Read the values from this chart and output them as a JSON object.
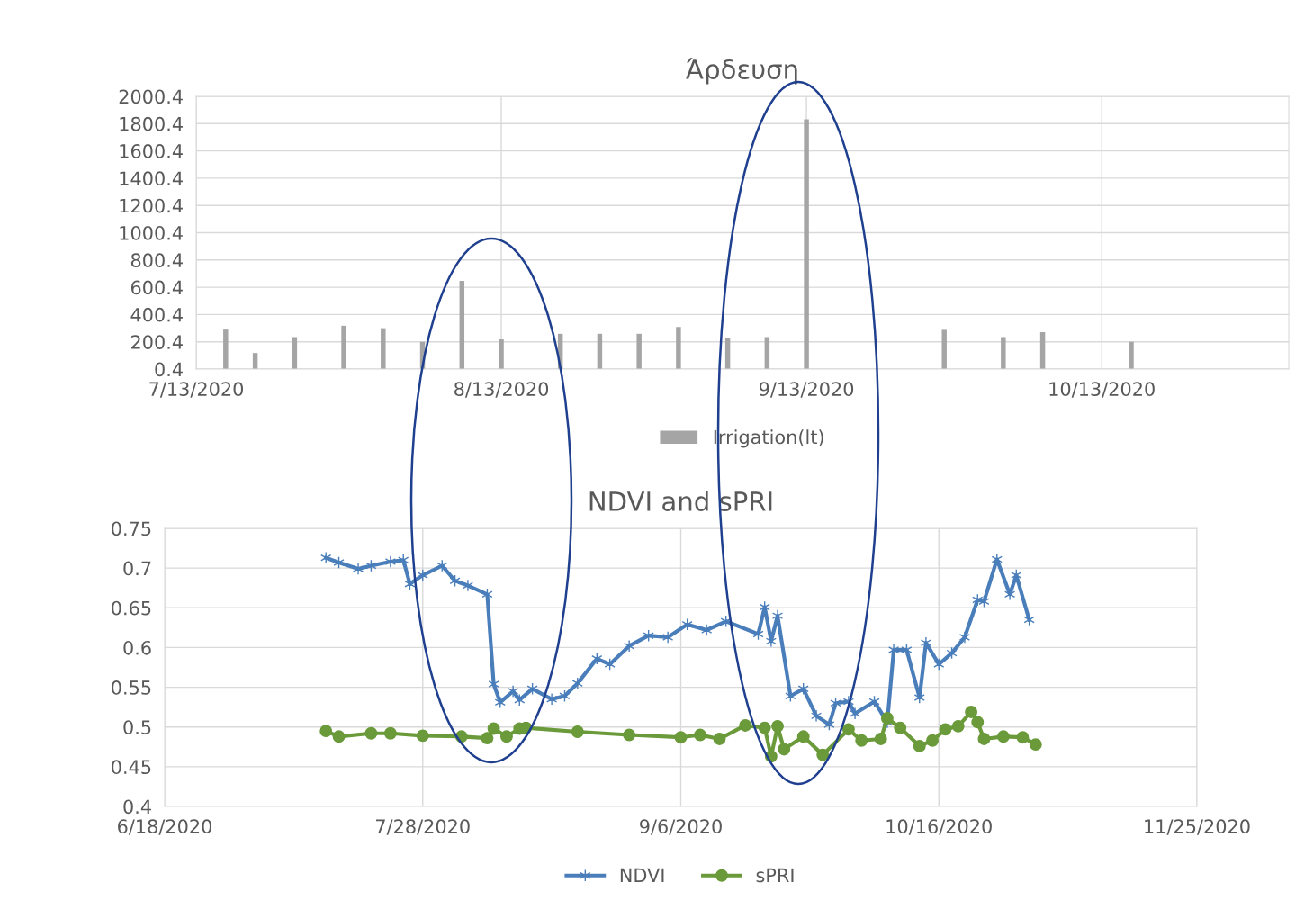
{
  "chart_data": [
    {
      "type": "bar",
      "title": "Άρδευση",
      "legend": "bottom",
      "grid": true,
      "x": [
        "2020-07-16",
        "2020-07-19",
        "2020-07-23",
        "2020-07-28",
        "2020-08-01",
        "2020-08-05",
        "2020-08-09",
        "2020-08-13",
        "2020-08-19",
        "2020-08-23",
        "2020-08-27",
        "2020-08-31",
        "2020-09-05",
        "2020-09-09",
        "2020-09-13",
        "2020-09-27",
        "2020-10-03",
        "2020-10-07",
        "2020-10-16"
      ],
      "series": [
        {
          "name": "Irrigation(lt)",
          "color": "#a5a5a5",
          "values": [
            290,
            118,
            235,
            318,
            300,
            200,
            647,
            218,
            259,
            259,
            259,
            309,
            226,
            235,
            1832,
            288,
            235,
            271,
            200
          ]
        }
      ],
      "xlim": [
        "2020-07-13",
        "2020-11-01"
      ],
      "xticks": [
        {
          "value": "2020-07-13",
          "label": "7/13/2020"
        },
        {
          "value": "2020-08-13",
          "label": "8/13/2020"
        },
        {
          "value": "2020-09-13",
          "label": "9/13/2020"
        },
        {
          "value": "2020-10-13",
          "label": "10/13/2020"
        }
      ],
      "ylim": [
        0.4,
        2000.4
      ],
      "yticks": [
        0.4,
        200.4,
        400.4,
        600.4,
        800.4,
        1000.4,
        1200.4,
        1400.4,
        1600.4,
        1800.4,
        2000.4
      ]
    },
    {
      "type": "line",
      "title": "NDVI and sPRI",
      "legend": "bottom",
      "grid": true,
      "series": [
        {
          "name": "NDVI",
          "color": "#4a7ebb",
          "marker": "cross",
          "x": [
            "2020-07-13",
            "2020-07-15",
            "2020-07-18",
            "2020-07-20",
            "2020-07-23",
            "2020-07-25",
            "2020-07-26",
            "2020-07-28",
            "2020-07-31",
            "2020-08-02",
            "2020-08-04",
            "2020-08-07",
            "2020-08-08",
            "2020-08-09",
            "2020-08-11",
            "2020-08-12",
            "2020-08-14",
            "2020-08-17",
            "2020-08-19",
            "2020-08-21",
            "2020-08-24",
            "2020-08-26",
            "2020-08-29",
            "2020-09-01",
            "2020-09-04",
            "2020-09-07",
            "2020-09-10",
            "2020-09-13",
            "2020-09-18",
            "2020-09-19",
            "2020-09-20",
            "2020-09-21",
            "2020-09-23",
            "2020-09-25",
            "2020-09-27",
            "2020-09-29",
            "2020-09-30",
            "2020-10-02",
            "2020-10-03",
            "2020-10-06",
            "2020-10-08",
            "2020-10-09",
            "2020-10-11",
            "2020-10-13",
            "2020-10-14",
            "2020-10-16",
            "2020-10-18",
            "2020-10-20",
            "2020-10-22",
            "2020-10-23",
            "2020-10-25",
            "2020-10-27",
            "2020-10-28",
            "2020-10-30"
          ],
          "values": [
            0.713,
            0.707,
            0.699,
            0.703,
            0.708,
            0.71,
            0.68,
            0.691,
            0.703,
            0.684,
            0.678,
            0.667,
            0.554,
            0.531,
            0.545,
            0.534,
            0.548,
            0.535,
            0.539,
            0.555,
            0.586,
            0.579,
            0.602,
            0.615,
            0.613,
            0.629,
            0.622,
            0.633,
            0.617,
            0.651,
            0.608,
            0.64,
            0.539,
            0.548,
            0.514,
            0.503,
            0.53,
            0.532,
            0.517,
            0.532,
            0.506,
            0.597,
            0.597,
            0.537,
            0.606,
            0.579,
            0.593,
            0.613,
            0.66,
            0.658,
            0.711,
            0.667,
            0.691,
            0.635
          ]
        },
        {
          "name": "sPRI",
          "color": "#6a9a3a",
          "marker": "circle",
          "x": [
            "2020-07-13",
            "2020-07-15",
            "2020-07-20",
            "2020-07-23",
            "2020-07-28",
            "2020-08-03",
            "2020-08-07",
            "2020-08-08",
            "2020-08-10",
            "2020-08-12",
            "2020-08-13",
            "2020-08-21",
            "2020-08-29",
            "2020-09-06",
            "2020-09-09",
            "2020-09-12",
            "2020-09-16",
            "2020-09-19",
            "2020-09-20",
            "2020-09-21",
            "2020-09-22",
            "2020-09-25",
            "2020-09-28",
            "2020-10-02",
            "2020-10-04",
            "2020-10-07",
            "2020-10-08",
            "2020-10-10",
            "2020-10-13",
            "2020-10-15",
            "2020-10-17",
            "2020-10-19",
            "2020-10-21",
            "2020-10-22",
            "2020-10-23",
            "2020-10-26",
            "2020-10-29",
            "2020-10-31"
          ],
          "values": [
            0.495,
            0.488,
            0.492,
            0.492,
            0.489,
            0.488,
            0.486,
            0.498,
            0.488,
            0.498,
            0.499,
            0.494,
            0.49,
            0.487,
            0.49,
            0.485,
            0.502,
            0.499,
            0.463,
            0.501,
            0.472,
            0.488,
            0.465,
            0.497,
            0.483,
            0.485,
            0.511,
            0.499,
            0.476,
            0.483,
            0.497,
            0.501,
            0.519,
            0.506,
            0.485,
            0.488,
            0.487,
            0.478
          ]
        }
      ],
      "xlim": [
        "2020-06-18",
        "2020-11-25"
      ],
      "xticks": [
        {
          "value": "2020-06-18",
          "label": "6/18/2020"
        },
        {
          "value": "2020-07-28",
          "label": "7/28/2020"
        },
        {
          "value": "2020-09-06",
          "label": "9/6/2020"
        },
        {
          "value": "2020-10-16",
          "label": "10/16/2020"
        },
        {
          "value": "2020-11-25",
          "label": "11/25/2020"
        }
      ],
      "ylim": [
        0.4,
        0.75
      ],
      "yticks": [
        {
          "value": 0.4,
          "label": "0.4"
        },
        {
          "value": 0.45,
          "label": "0.45"
        },
        {
          "value": 0.5,
          "label": "0.5"
        },
        {
          "value": 0.55,
          "label": "0.55"
        },
        {
          "value": 0.6,
          "label": "0.6"
        },
        {
          "value": 0.65,
          "label": "0.65"
        },
        {
          "value": 0.7,
          "label": "0.7"
        },
        {
          "value": 0.75,
          "label": "0.75"
        }
      ]
    }
  ]
}
